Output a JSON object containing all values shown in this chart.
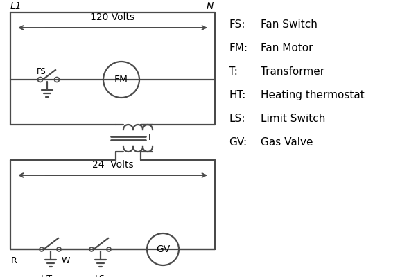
{
  "background_color": "#ffffff",
  "line_color": "#4a4a4a",
  "text_color": "#000000",
  "legend_items": [
    [
      "FS:",
      "Fan Switch"
    ],
    [
      "FM:",
      "Fan Motor"
    ],
    [
      "T:",
      "Transformer"
    ],
    [
      "HT:",
      "Heating thermostat"
    ],
    [
      "LS:",
      "Limit Switch"
    ],
    [
      "GV:",
      "Gas Valve"
    ]
  ],
  "volts_120_label": "120 Volts",
  "volts_24_label": "24  Volts",
  "L1_label": "L1",
  "N_label": "N",
  "T_label": "T",
  "R_label": "R",
  "W_label": "W",
  "HT_label": "HT",
  "LS_label": "LS",
  "FS_label": "FS",
  "FM_label": "FM",
  "GV_label": "GV"
}
